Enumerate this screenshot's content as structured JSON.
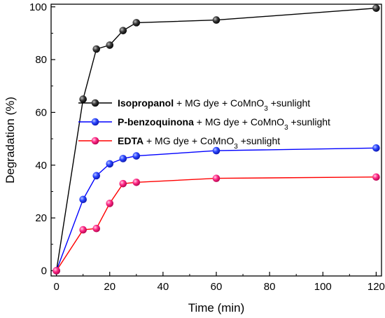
{
  "chart_data": {
    "type": "line",
    "xlabel": "Time (min)",
    "ylabel": "Degradation (%)",
    "xlim": [
      -2,
      122
    ],
    "ylim": [
      -2,
      101
    ],
    "xticks": [
      0,
      20,
      40,
      60,
      80,
      100,
      120
    ],
    "yticks": [
      0,
      20,
      40,
      60,
      80,
      100
    ],
    "xtick_labels": [
      "0",
      "20",
      "40",
      "60",
      "80",
      "100",
      "120"
    ],
    "ytick_labels": [
      "0",
      "20",
      "40",
      "60",
      "80",
      "100"
    ],
    "grid": false,
    "legend_position": "center",
    "series": [
      {
        "name": "Isopropanol + MG dye + CoMnO3 +sunlight",
        "legend_bold": "Isopropanol",
        "legend_rest": " + MG dye + CoMnO",
        "legend_sub": "3",
        "legend_tail": " +sunlight",
        "line_color": "#000000",
        "marker_color": "#1a1a1a",
        "x": [
          0,
          10,
          15,
          20,
          25,
          30,
          60,
          120
        ],
        "y": [
          0,
          65,
          84,
          85.5,
          91,
          94,
          95,
          99.5
        ]
      },
      {
        "name": "P-benzoquinona + MG dye + CoMnO3 +sunlight",
        "legend_bold": "P-benzoquinona",
        "legend_rest": " + MG dye  + CoMnO",
        "legend_sub": "3",
        "legend_tail": " +sunlight",
        "line_color": "#0000ff",
        "marker_color": "#1e3cff",
        "x": [
          0,
          10,
          15,
          20,
          25,
          30,
          60,
          120
        ],
        "y": [
          0,
          27,
          36,
          40.5,
          42.5,
          43.5,
          45.5,
          46.5
        ]
      },
      {
        "name": "EDTA + MG dye + CoMnO3 +sunlight",
        "legend_bold": "EDTA",
        "legend_rest": " + MG dye  + CoMnO",
        "legend_sub": "3",
        "legend_tail": " +sunlight",
        "line_color": "#ff0000",
        "marker_color": "#ff1f7a",
        "x": [
          0,
          10,
          15,
          20,
          25,
          30,
          60,
          120
        ],
        "y": [
          0,
          15.5,
          16,
          25.5,
          33,
          33.5,
          35,
          35.5
        ]
      }
    ]
  }
}
